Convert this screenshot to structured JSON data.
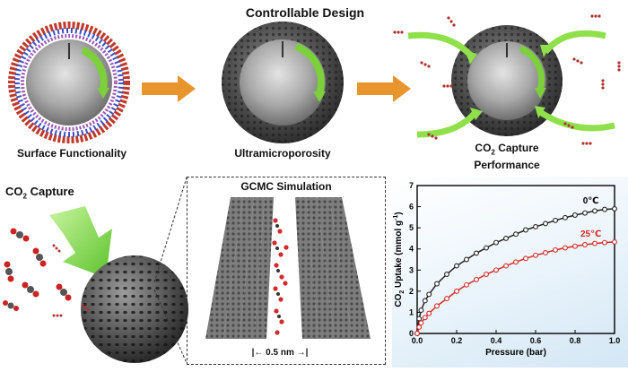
{
  "header": {
    "title": "Controllable Design"
  },
  "stages": [
    {
      "label": "Surface Functionality"
    },
    {
      "label": "Ultramicroporosity"
    },
    {
      "label_main": "CO",
      "label_sub": "2",
      "label_rest": "Capture",
      "label_line2": "Performance"
    }
  ],
  "capture": {
    "main": "CO",
    "sub": "2",
    "rest": "Capture"
  },
  "gcmc": {
    "title": "GCMC Simulation",
    "pore_width": "0.5 nm"
  },
  "colors": {
    "arrow_orange": "#e8952e",
    "arrow_green": "#7cd13a",
    "black_series": "#222222",
    "red_series": "#d42a2a"
  },
  "chart_data": {
    "type": "line",
    "xlabel": "Pressure (bar)",
    "ylabel_parts": {
      "main": "CO",
      "sub": "2",
      "rest": " Uptake (mmol g",
      "sup": "-1",
      "close": ")"
    },
    "xlim": [
      0.0,
      1.0
    ],
    "ylim": [
      0,
      7
    ],
    "xticks": [
      "0.0",
      "0.2",
      "0.4",
      "0.6",
      "0.8",
      "1.0"
    ],
    "yticks": [
      "0",
      "1",
      "2",
      "3",
      "4",
      "5",
      "6",
      "7"
    ],
    "x": [
      0.0,
      0.01,
      0.02,
      0.04,
      0.06,
      0.1,
      0.15,
      0.2,
      0.25,
      0.3,
      0.35,
      0.4,
      0.45,
      0.5,
      0.55,
      0.6,
      0.65,
      0.7,
      0.75,
      0.8,
      0.85,
      0.9,
      0.95,
      1.0
    ],
    "series": [
      {
        "name": "0℃",
        "color": "#222222",
        "values": [
          0.0,
          0.7,
          1.1,
          1.55,
          1.85,
          2.35,
          2.8,
          3.2,
          3.5,
          3.8,
          4.05,
          4.3,
          4.5,
          4.7,
          4.9,
          5.05,
          5.2,
          5.35,
          5.48,
          5.6,
          5.7,
          5.8,
          5.87,
          5.9
        ]
      },
      {
        "name": "25℃",
        "color": "#d42a2a",
        "values": [
          0.0,
          0.3,
          0.5,
          0.75,
          0.95,
          1.3,
          1.65,
          2.0,
          2.3,
          2.55,
          2.8,
          3.0,
          3.2,
          3.38,
          3.55,
          3.7,
          3.82,
          3.95,
          4.05,
          4.13,
          4.2,
          4.26,
          4.3,
          4.33
        ]
      }
    ]
  }
}
